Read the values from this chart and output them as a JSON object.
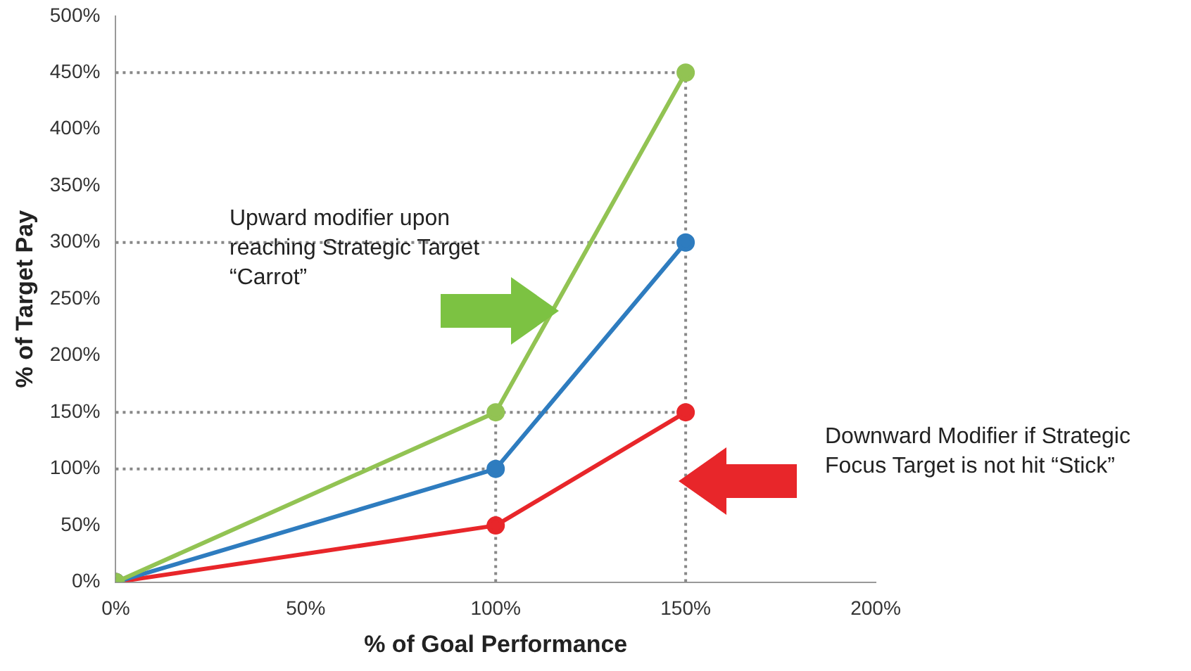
{
  "chart_data": {
    "type": "line",
    "xlabel": "% of Goal Performance",
    "ylabel": "% of Target Pay",
    "x": [
      0,
      100,
      150
    ],
    "series": [
      {
        "color": "#92c353",
        "values": [
          0,
          150,
          450
        ]
      },
      {
        "color": "#2e7cbf",
        "values": [
          0,
          100,
          300
        ]
      },
      {
        "color": "#e8262a",
        "values": [
          0,
          50,
          150
        ]
      }
    ],
    "xlim": [
      0,
      200
    ],
    "xticks": [
      {
        "value": 0,
        "label": "0%"
      },
      {
        "value": 50,
        "label": "50%"
      },
      {
        "value": 100,
        "label": "100%"
      },
      {
        "value": 150,
        "label": "150%"
      },
      {
        "value": 200,
        "label": "200%"
      }
    ],
    "ylim": [
      0,
      500
    ],
    "yticks": [
      {
        "value": 0,
        "label": "0%"
      },
      {
        "value": 50,
        "label": "50%"
      },
      {
        "value": 100,
        "label": "100%"
      },
      {
        "value": 150,
        "label": "150%"
      },
      {
        "value": 200,
        "label": "200%"
      },
      {
        "value": 250,
        "label": "250%"
      },
      {
        "value": 300,
        "label": "300%"
      },
      {
        "value": 350,
        "label": "350%"
      },
      {
        "value": 400,
        "label": "400%"
      },
      {
        "value": 450,
        "label": "450%"
      },
      {
        "value": 500,
        "label": "500%"
      }
    ],
    "ref_lines": [
      {
        "axis": "y",
        "value": 450,
        "color": "#888888",
        "line_style": "dotted"
      },
      {
        "axis": "y",
        "value": 300,
        "color": "#888888",
        "line_style": "dotted"
      },
      {
        "axis": "y",
        "value": 150,
        "color": "#888888",
        "line_style": "dotted"
      },
      {
        "axis": "y",
        "value": 100,
        "color": "#888888",
        "line_style": "dotted"
      },
      {
        "axis": "x",
        "value": 100,
        "color": "#888888",
        "line_style": "dotted"
      },
      {
        "axis": "x",
        "value": 150,
        "color": "#888888",
        "line_style": "dotted"
      }
    ],
    "annotations": [
      "Upward modifier upon reaching Strategic Target “Carrot”",
      "Downward Modifier if Strategic Focus Target is not hit “Stick”"
    ],
    "marker": "circle",
    "line_style": "solid",
    "grid": false,
    "legend": false
  }
}
